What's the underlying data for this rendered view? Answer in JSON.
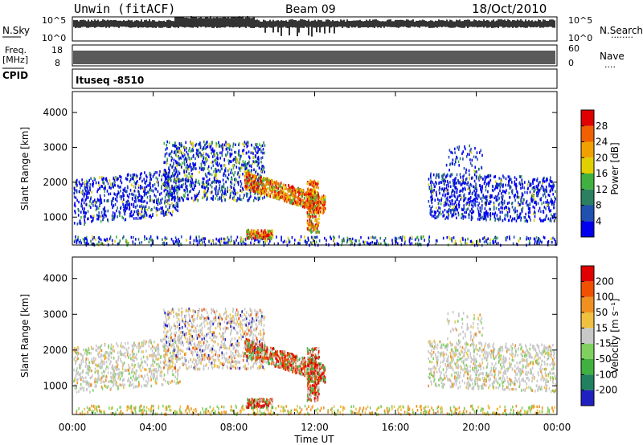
{
  "header": {
    "radar": "Unwin (fitACF)",
    "beam": "Beam 09",
    "date": "18/Oct/2010"
  },
  "strips": {
    "nsky_label": "N.Sky",
    "nsky_ticks": [
      "10^5",
      "10^0"
    ],
    "nsearch_label": "N.Search",
    "nsearch_ticks": [
      "10^5",
      "10^0"
    ],
    "freq_label_1": "Freq.",
    "freq_label_2": "[MHz]",
    "freq_ticks": [
      "18",
      "8"
    ],
    "nave_label": "Nave",
    "nave_ticks": [
      "60",
      "0"
    ],
    "cpid_label": "CPID",
    "cpid_value": "Ituseq -8510"
  },
  "chart_data": [
    {
      "type": "heatmap",
      "name": "power",
      "ylabel": "Slant Range [km]",
      "ylim": [
        200,
        4600
      ],
      "yticks": [
        "4000",
        "3000",
        "2000",
        "1000"
      ],
      "colorbar_label": "Power [dB]",
      "colorbar_ticks": [
        "28",
        "24",
        "20",
        "16",
        "12",
        "8",
        "4"
      ],
      "colors": [
        "#0000ee",
        "#2050b0",
        "#2a8060",
        "#40b040",
        "#e0d000",
        "#f0a000",
        "#f06000",
        "#e00000"
      ]
    },
    {
      "type": "heatmap",
      "name": "velocity",
      "xlabel": "Time UT",
      "ylabel": "Slant Range [km]",
      "ylim": [
        200,
        4600
      ],
      "yticks": [
        "4000",
        "3000",
        "2000",
        "1000"
      ],
      "xticks": [
        "00:00",
        "04:00",
        "08:00",
        "12:00",
        "16:00",
        "20:00",
        "00:00"
      ],
      "colorbar_label": "Velocity [m s⁻¹]",
      "colorbar_ticks": [
        "200",
        "100",
        "50",
        "15",
        "-15",
        "-50",
        "-100",
        "-200"
      ],
      "colors": [
        "#2020c0",
        "#208060",
        "#40b040",
        "#80d060",
        "#c8c8c8",
        "#f0c040",
        "#f09020",
        "#f05000",
        "#e00000"
      ]
    }
  ]
}
